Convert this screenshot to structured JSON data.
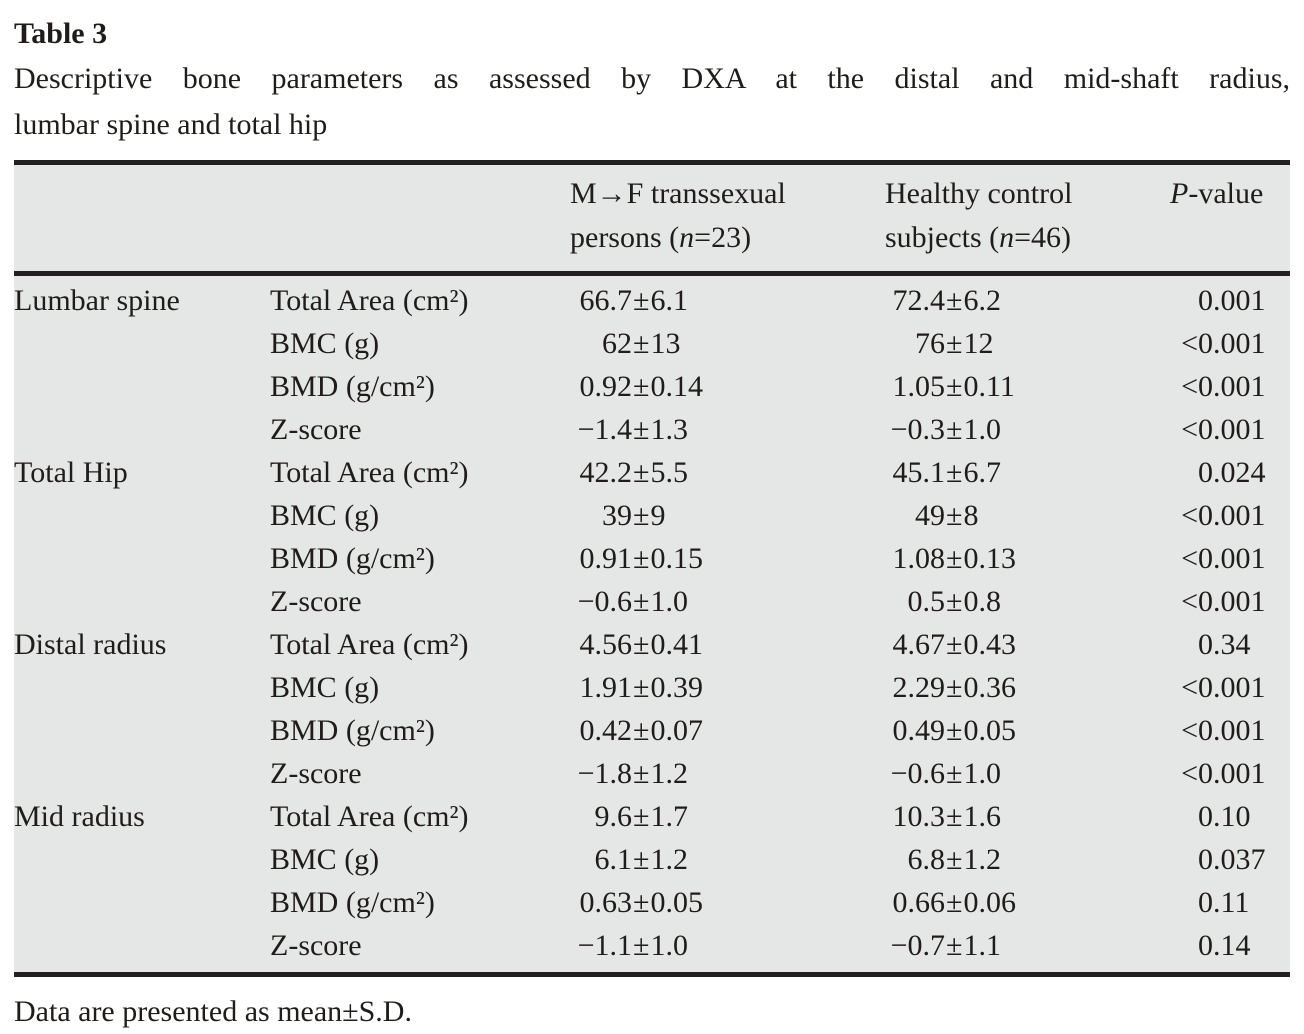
{
  "colors": {
    "table_background": "#e5e6e6",
    "rule": "#242021",
    "text": "#201c1a"
  },
  "title": "Table 3",
  "caption_line1": "Descriptive bone parameters as assessed by DXA at the distal and mid-shaft radius,",
  "caption_line2": "lumbar spine and total hip",
  "header": {
    "region": "",
    "parameter": "",
    "mtf": {
      "line1": "M→F transsexual",
      "line2": [
        "persons (",
        "n",
        "=23)"
      ]
    },
    "control": {
      "line1": "Healthy control",
      "line2": [
        "subjects (",
        "n",
        "=46)"
      ]
    },
    "pvalue": [
      "P",
      "-value"
    ]
  },
  "sections": [
    {
      "region": "Lumbar spine",
      "rows": [
        {
          "parameter": "Total Area (cm²)",
          "mtf": "66.7±6.1",
          "control": "72.4±6.2",
          "p": "0.001"
        },
        {
          "parameter": "BMC (g)",
          "mtf": "62±13",
          "control": "76±12",
          "p": "<0.001"
        },
        {
          "parameter": "BMD (g/cm²)",
          "mtf": "0.92±0.14",
          "control": "1.05±0.11",
          "p": "<0.001"
        },
        {
          "parameter": "Z-score",
          "mtf": "−1.4±1.3",
          "control": "−0.3±1.0",
          "p": "<0.001"
        }
      ]
    },
    {
      "region": "Total Hip",
      "rows": [
        {
          "parameter": "Total Area (cm²)",
          "mtf": "42.2±5.5",
          "control": "45.1±6.7",
          "p": "0.024"
        },
        {
          "parameter": "BMC (g)",
          "mtf": "39±9",
          "control": "49±8",
          "p": "<0.001"
        },
        {
          "parameter": "BMD (g/cm²)",
          "mtf": "0.91±0.15",
          "control": "1.08±0.13",
          "p": "<0.001"
        },
        {
          "parameter": "Z-score",
          "mtf": "−0.6±1.0",
          "control": "0.5±0.8",
          "p": "<0.001"
        }
      ]
    },
    {
      "region": "Distal radius",
      "rows": [
        {
          "parameter": "Total Area (cm²)",
          "mtf": "4.56±0.41",
          "control": "4.67±0.43",
          "p": "0.34"
        },
        {
          "parameter": "BMC (g)",
          "mtf": "1.91±0.39",
          "control": "2.29±0.36",
          "p": "<0.001"
        },
        {
          "parameter": "BMD (g/cm²)",
          "mtf": "0.42±0.07",
          "control": "0.49±0.05",
          "p": "<0.001"
        },
        {
          "parameter": "Z-score",
          "mtf": "−1.8±1.2",
          "control": "−0.6±1.0",
          "p": "<0.001"
        }
      ]
    },
    {
      "region": "Mid radius",
      "rows": [
        {
          "parameter": "Total Area (cm²)",
          "mtf": "9.6±1.7",
          "control": "10.3±1.6",
          "p": "0.10"
        },
        {
          "parameter": "BMC (g)",
          "mtf": "6.1±1.2",
          "control": "6.8±1.2",
          "p": "0.037"
        },
        {
          "parameter": "BMD (g/cm²)",
          "mtf": "0.63±0.05",
          "control": "0.66±0.06",
          "p": "0.11"
        },
        {
          "parameter": "Z-score",
          "mtf": "−1.1±1.0",
          "control": "−0.7±1.1",
          "p": "0.14"
        }
      ]
    }
  ],
  "footnote": "Data are presented as mean±S.D."
}
